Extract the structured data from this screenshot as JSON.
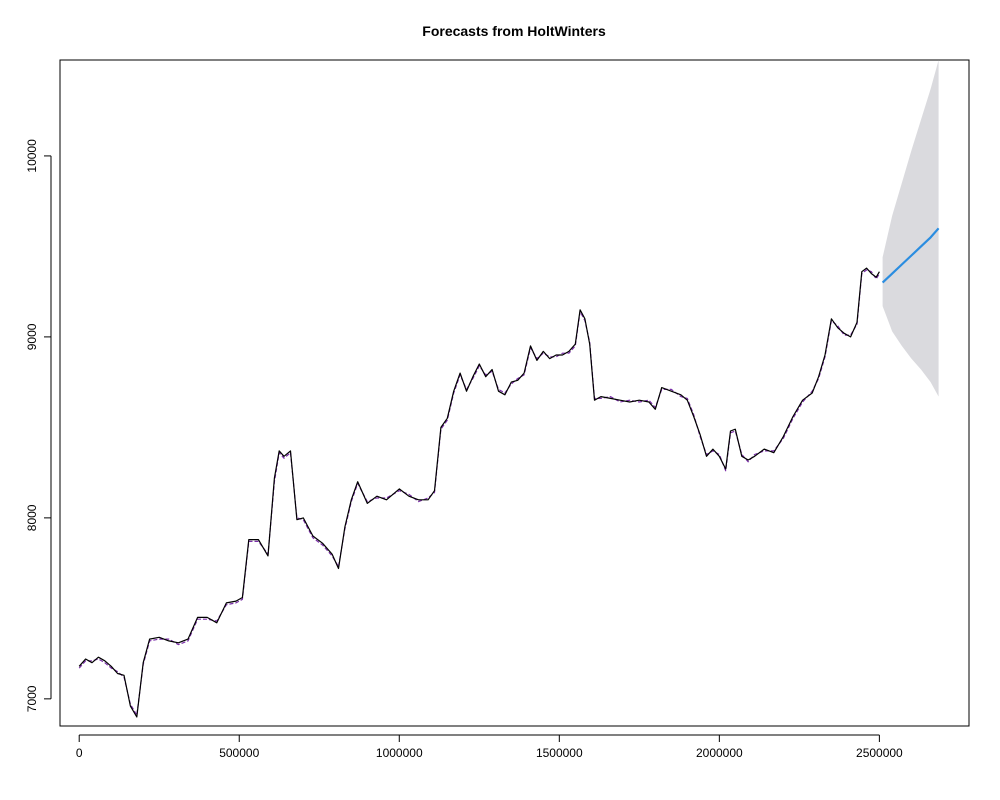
{
  "chart_data": {
    "type": "line",
    "title": "Forecasts from HoltWinters",
    "xlabel": "",
    "ylabel": "",
    "xlim": [
      -60000,
      2780000
    ],
    "ylim": [
      6850,
      10530
    ],
    "x_ticks": [
      0,
      500000,
      1000000,
      1500000,
      2000000,
      2500000
    ],
    "x_tick_labels": [
      "0",
      "500000",
      "1000000",
      "1500000",
      "2000000",
      "2500000"
    ],
    "y_ticks": [
      7000,
      8000,
      9000,
      10000
    ],
    "y_tick_labels": [
      "7000",
      "8000",
      "9000",
      "10000"
    ],
    "grid": false,
    "colors": {
      "observed": "#000000",
      "fitted": "#7a2ea8",
      "forecast": "#2b8de0",
      "interval": "#dadade"
    },
    "series": [
      {
        "role": "observed",
        "x": [
          0,
          20000,
          40000,
          60000,
          80000,
          100000,
          120000,
          140000,
          160000,
          180000,
          200000,
          220000,
          250000,
          280000,
          310000,
          340000,
          370000,
          400000,
          430000,
          460000,
          490000,
          510000,
          530000,
          560000,
          590000,
          610000,
          625000,
          640000,
          660000,
          680000,
          700000,
          730000,
          760000,
          790000,
          810000,
          830000,
          850000,
          870000,
          900000,
          930000,
          960000,
          1000000,
          1030000,
          1060000,
          1090000,
          1110000,
          1130000,
          1150000,
          1170000,
          1190000,
          1210000,
          1230000,
          1250000,
          1270000,
          1290000,
          1310000,
          1330000,
          1350000,
          1370000,
          1390000,
          1410000,
          1430000,
          1450000,
          1470000,
          1490000,
          1510000,
          1530000,
          1550000,
          1565000,
          1580000,
          1595000,
          1610000,
          1630000,
          1660000,
          1690000,
          1720000,
          1750000,
          1780000,
          1800000,
          1820000,
          1850000,
          1880000,
          1900000,
          1920000,
          1940000,
          1960000,
          1980000,
          2000000,
          2020000,
          2035000,
          2050000,
          2070000,
          2090000,
          2110000,
          2140000,
          2170000,
          2200000,
          2230000,
          2260000,
          2290000,
          2310000,
          2330000,
          2350000,
          2370000,
          2390000,
          2410000,
          2430000,
          2445000,
          2460000,
          2475000,
          2490000,
          2500000
        ],
        "values": [
          7180,
          7220,
          7200,
          7230,
          7210,
          7180,
          7140,
          7130,
          6960,
          6900,
          7200,
          7330,
          7340,
          7320,
          7310,
          7330,
          7450,
          7450,
          7420,
          7530,
          7540,
          7560,
          7880,
          7880,
          7790,
          8220,
          8370,
          8340,
          8370,
          7990,
          8000,
          7900,
          7860,
          7800,
          7720,
          7950,
          8100,
          8200,
          8080,
          8120,
          8100,
          8160,
          8120,
          8100,
          8100,
          8150,
          8500,
          8550,
          8700,
          8800,
          8700,
          8780,
          8850,
          8780,
          8820,
          8700,
          8680,
          8750,
          8760,
          8800,
          8950,
          8870,
          8920,
          8880,
          8900,
          8900,
          8920,
          8960,
          9150,
          9100,
          8960,
          8650,
          8670,
          8660,
          8650,
          8640,
          8650,
          8640,
          8600,
          8720,
          8700,
          8680,
          8650,
          8560,
          8460,
          8340,
          8380,
          8340,
          8270,
          8480,
          8490,
          8340,
          8320,
          8340,
          8380,
          8360,
          8450,
          8560,
          8650,
          8690,
          8780,
          8900,
          9100,
          9050,
          9020,
          9000,
          9080,
          9360,
          9380,
          9350,
          9330,
          9360
        ]
      },
      {
        "role": "fitted",
        "x": [
          0,
          20000,
          40000,
          60000,
          80000,
          100000,
          120000,
          140000,
          160000,
          180000,
          200000,
          220000,
          250000,
          280000,
          310000,
          340000,
          370000,
          400000,
          430000,
          460000,
          490000,
          510000,
          530000,
          560000,
          590000,
          610000,
          625000,
          640000,
          660000,
          680000,
          700000,
          730000,
          760000,
          790000,
          810000,
          830000,
          850000,
          870000,
          900000,
          930000,
          960000,
          1000000,
          1030000,
          1060000,
          1090000,
          1110000,
          1130000,
          1150000,
          1170000,
          1190000,
          1210000,
          1230000,
          1250000,
          1270000,
          1290000,
          1310000,
          1330000,
          1350000,
          1370000,
          1390000,
          1410000,
          1430000,
          1450000,
          1470000,
          1490000,
          1510000,
          1530000,
          1550000,
          1565000,
          1580000,
          1595000,
          1610000,
          1630000,
          1660000,
          1690000,
          1720000,
          1750000,
          1780000,
          1800000,
          1820000,
          1850000,
          1880000,
          1900000,
          1920000,
          1940000,
          1960000,
          1980000,
          2000000,
          2020000,
          2035000,
          2050000,
          2070000,
          2090000,
          2110000,
          2140000,
          2170000,
          2200000,
          2230000,
          2260000,
          2290000,
          2310000,
          2330000,
          2350000,
          2370000,
          2390000,
          2410000,
          2430000,
          2445000,
          2460000,
          2475000,
          2490000,
          2500000
        ],
        "values": [
          7170,
          7210,
          7210,
          7220,
          7200,
          7170,
          7150,
          7120,
          6970,
          6910,
          7190,
          7320,
          7330,
          7330,
          7300,
          7320,
          7440,
          7440,
          7430,
          7520,
          7530,
          7550,
          7870,
          7870,
          7800,
          8200,
          8360,
          8330,
          8360,
          8000,
          7990,
          7890,
          7850,
          7790,
          7730,
          7940,
          8090,
          8190,
          8090,
          8110,
          8110,
          8150,
          8130,
          8090,
          8110,
          8140,
          8490,
          8540,
          8690,
          8790,
          8710,
          8770,
          8840,
          8790,
          8810,
          8710,
          8690,
          8740,
          8770,
          8790,
          8940,
          8880,
          8910,
          8890,
          8890,
          8910,
          8910,
          8950,
          9140,
          9090,
          8970,
          8660,
          8660,
          8670,
          8640,
          8650,
          8640,
          8650,
          8610,
          8710,
          8710,
          8670,
          8660,
          8570,
          8450,
          8350,
          8370,
          8350,
          8260,
          8470,
          8480,
          8350,
          8310,
          8350,
          8370,
          8370,
          8440,
          8550,
          8640,
          8700,
          8770,
          8890,
          9090,
          9060,
          9010,
          9010,
          9070,
          9350,
          9370,
          9360,
          9320,
          9350
        ]
      },
      {
        "role": "forecast",
        "x": [
          2510000,
          2540000,
          2570000,
          2600000,
          2630000,
          2660000,
          2685000
        ],
        "values": [
          9300,
          9350,
          9400,
          9450,
          9500,
          9550,
          9600
        ]
      }
    ],
    "interval": {
      "x": [
        2510000,
        2540000,
        2570000,
        2600000,
        2630000,
        2660000,
        2685000
      ],
      "upper": [
        9440,
        9670,
        9850,
        10030,
        10200,
        10370,
        10530
      ],
      "lower": [
        9170,
        9030,
        8950,
        8880,
        8820,
        8750,
        8670
      ]
    }
  }
}
